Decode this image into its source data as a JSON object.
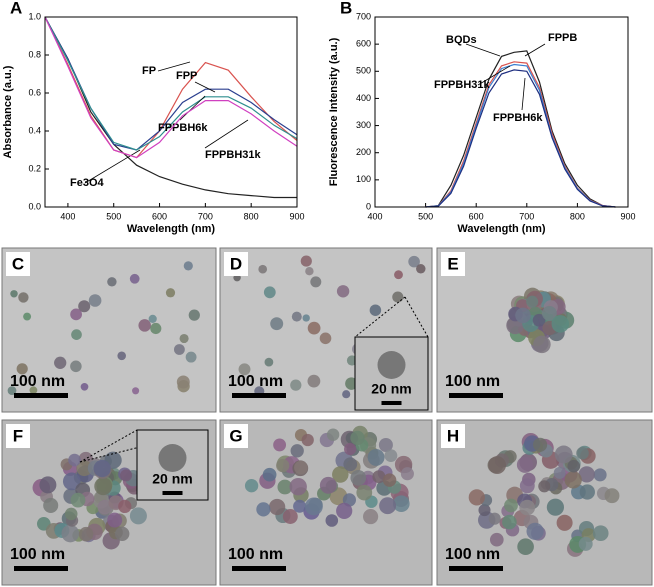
{
  "chart_data": [
    {
      "type": "line",
      "label": "A",
      "xlabel": "Wavelength (nm)",
      "ylabel": "Absorbance (a.u.)",
      "x": [
        350,
        400,
        450,
        500,
        550,
        600,
        650,
        700,
        750,
        800,
        850,
        900
      ],
      "xlim": [
        350,
        900
      ],
      "xticks": [
        400,
        500,
        600,
        700,
        800,
        900
      ],
      "ylim": [
        0,
        1
      ],
      "yticks": [
        {
          "value": 0,
          "label": "0.0"
        },
        0.2,
        0.4,
        0.6,
        0.8,
        {
          "value": 1,
          "label": "1.0"
        }
      ],
      "series": [
        {
          "name": "Fe3O4",
          "color": "#222222",
          "values": [
            1.0,
            0.78,
            0.5,
            0.33,
            0.22,
            0.16,
            0.12,
            0.09,
            0.07,
            0.06,
            0.05,
            0.05
          ]
        },
        {
          "name": "FP",
          "color": "#d9534f",
          "values": [
            1.0,
            0.75,
            0.48,
            0.3,
            0.26,
            0.4,
            0.62,
            0.76,
            0.72,
            0.58,
            0.45,
            0.35
          ]
        },
        {
          "name": "FPP",
          "color": "#2b3f8f",
          "values": [
            1.0,
            0.78,
            0.52,
            0.33,
            0.3,
            0.4,
            0.55,
            0.62,
            0.62,
            0.55,
            0.46,
            0.38
          ]
        },
        {
          "name": "FPPBH6k",
          "color": "#2f8f8f",
          "values": [
            1.0,
            0.77,
            0.52,
            0.34,
            0.3,
            0.37,
            0.5,
            0.58,
            0.58,
            0.52,
            0.43,
            0.36
          ]
        },
        {
          "name": "FPPBH31k",
          "color": "#d040c0",
          "values": [
            1.0,
            0.74,
            0.47,
            0.3,
            0.26,
            0.34,
            0.48,
            0.56,
            0.56,
            0.49,
            0.4,
            0.32
          ]
        }
      ]
    },
    {
      "type": "line",
      "label": "B",
      "xlabel": "Wavelength (nm)",
      "ylabel": "Fluorescence Intensity (a.u.)",
      "x": [
        500,
        525,
        550,
        575,
        600,
        625,
        650,
        675,
        700,
        725,
        750,
        775,
        800,
        825,
        850,
        875
      ],
      "xlim": [
        400,
        900
      ],
      "xticks": [
        400,
        500,
        600,
        700,
        800,
        900
      ],
      "ylim": [
        0,
        700
      ],
      "yticks": [
        0,
        100,
        200,
        300,
        400,
        500,
        600,
        700
      ],
      "series": [
        {
          "name": "BQDs",
          "color": "#222222",
          "values": [
            0,
            5,
            80,
            190,
            330,
            470,
            555,
            570,
            575,
            460,
            280,
            160,
            80,
            30,
            5,
            0
          ]
        },
        {
          "name": "FPPB",
          "color": "#d9534f",
          "values": [
            0,
            4,
            60,
            170,
            310,
            450,
            520,
            535,
            530,
            440,
            270,
            150,
            70,
            25,
            5,
            0
          ]
        },
        {
          "name": "FPPBH31k",
          "color": "#3a7fd0",
          "values": [
            0,
            4,
            55,
            160,
            300,
            440,
            510,
            525,
            520,
            430,
            260,
            145,
            68,
            24,
            4,
            0
          ]
        },
        {
          "name": "FPPBH6k",
          "color": "#1f2f80",
          "values": [
            0,
            3,
            50,
            150,
            290,
            420,
            490,
            505,
            500,
            415,
            255,
            140,
            65,
            22,
            4,
            0
          ]
        }
      ]
    }
  ],
  "micrographs": [
    {
      "label": "C",
      "scale_bar": "100 nm"
    },
    {
      "label": "D",
      "scale_bar": "100 nm",
      "inset_scale_bar": "20 nm"
    },
    {
      "label": "E",
      "scale_bar": "100 nm"
    },
    {
      "label": "F",
      "scale_bar": "100 nm",
      "inset_scale_bar": "20 nm"
    },
    {
      "label": "G",
      "scale_bar": "100 nm"
    },
    {
      "label": "H",
      "scale_bar": "100 nm"
    }
  ]
}
